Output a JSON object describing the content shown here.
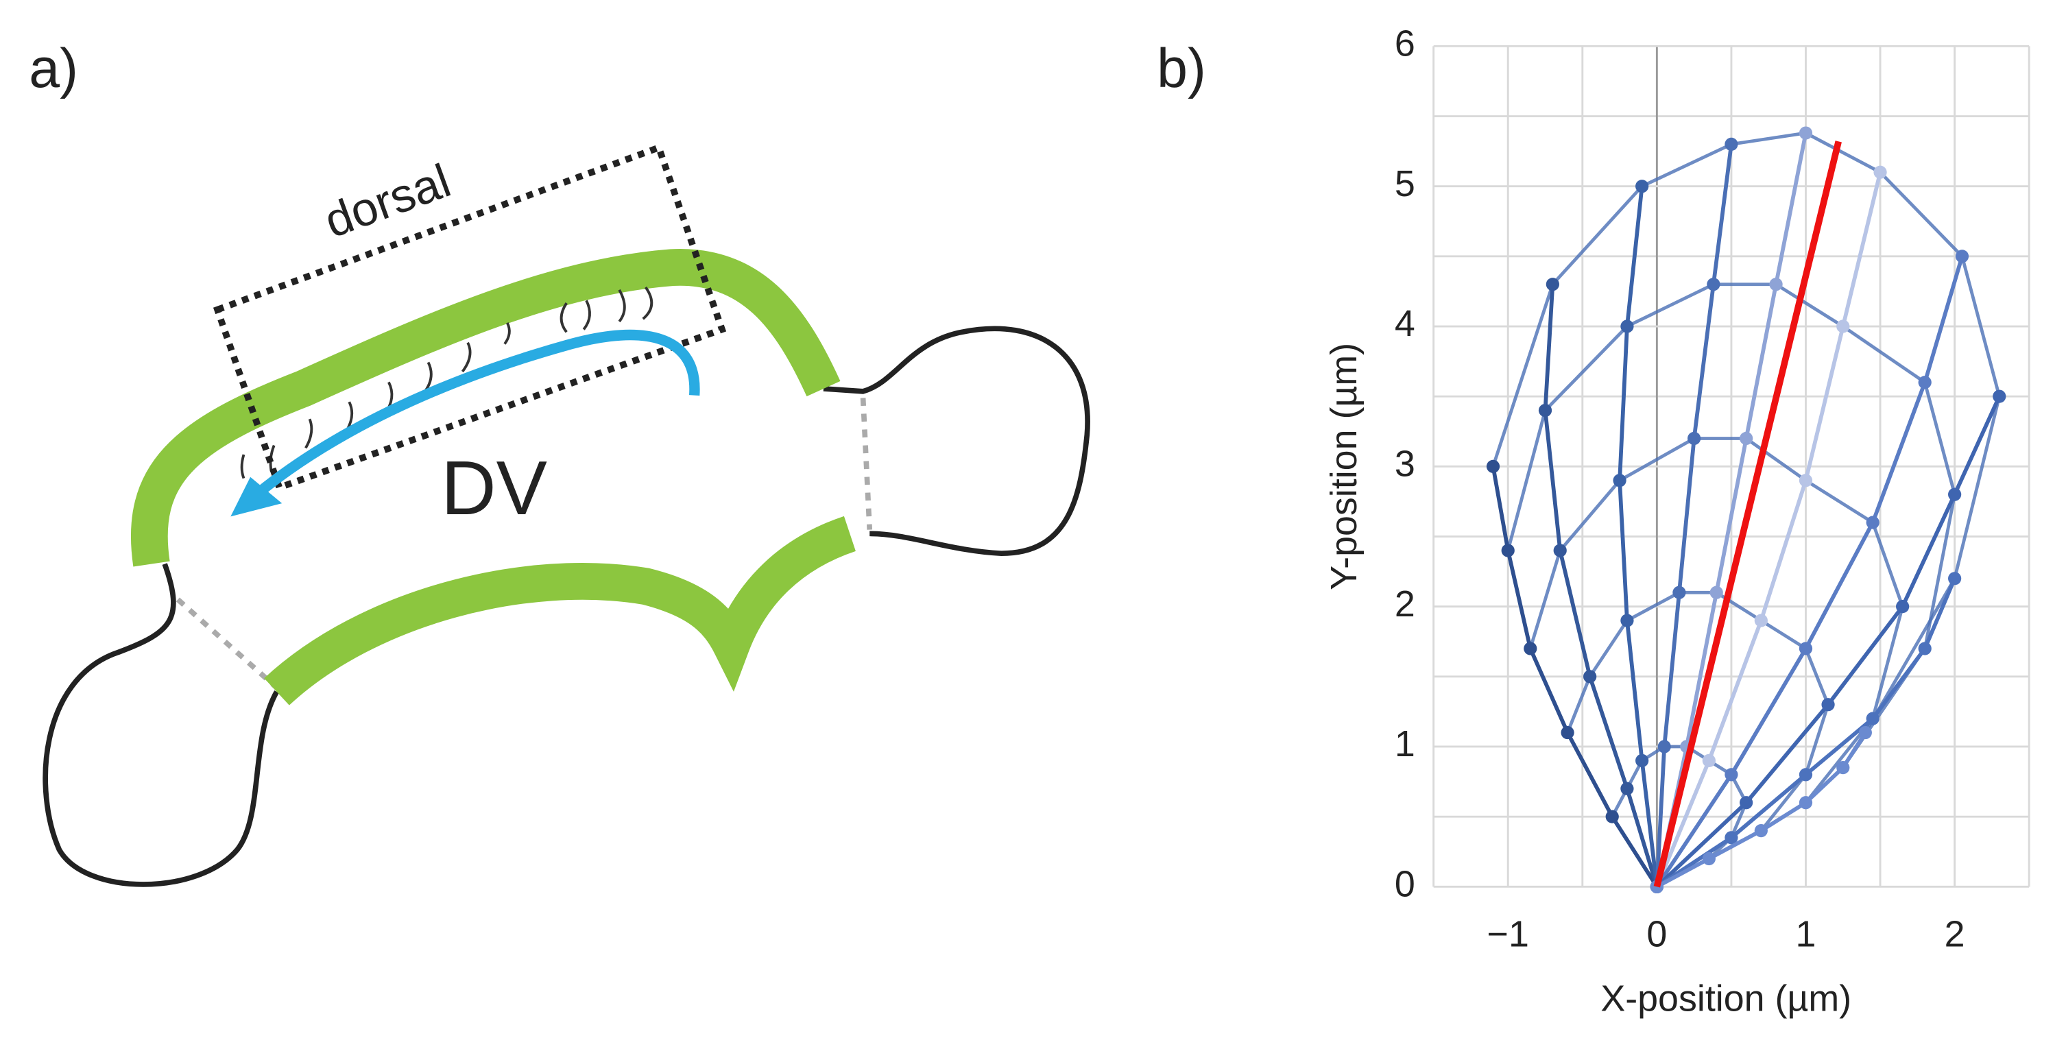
{
  "panel_a": {
    "label": "a)",
    "region": "dorsal",
    "axis": "DV"
  },
  "chart_data": {
    "type": "line",
    "label": "b)",
    "xlabel": "X-position (µm)",
    "ylabel": "Y-position (µm)",
    "xlim": [
      -1.5,
      2.5
    ],
    "ylim": [
      0,
      6
    ],
    "xticks": [
      {
        "value": -1,
        "label": "−1"
      },
      0,
      1,
      2
    ],
    "yticks": [
      0,
      1,
      2,
      3,
      4,
      5,
      6
    ],
    "xminor": [
      -1.5,
      -0.5,
      0.5,
      1.5,
      2.5
    ],
    "yminor": [
      0.5,
      1.5,
      2.5,
      3.5,
      4.5,
      5.5
    ],
    "grid": true,
    "series": [
      {
        "color": "#2e4f8f",
        "x": [
          0,
          -0.3,
          -0.6,
          -0.85,
          -1.0,
          -1.1
        ],
        "values": [
          0,
          0.5,
          1.1,
          1.7,
          2.4,
          3.0
        ]
      },
      {
        "color": "#34589a",
        "x": [
          0,
          -0.2,
          -0.45,
          -0.65,
          -0.75,
          -0.7
        ],
        "values": [
          0,
          0.7,
          1.5,
          2.4,
          3.4,
          4.3
        ]
      },
      {
        "color": "#3a62a8",
        "x": [
          0,
          -0.1,
          -0.2,
          -0.25,
          -0.2,
          -0.1
        ],
        "values": [
          0,
          0.9,
          1.9,
          2.9,
          4.0,
          5.0
        ]
      },
      {
        "color": "#4a6fb5",
        "x": [
          0,
          0.05,
          0.15,
          0.25,
          0.38,
          0.5
        ],
        "values": [
          0,
          1.0,
          2.1,
          3.2,
          4.3,
          5.3
        ]
      },
      {
        "color": "#8ea3d6",
        "x": [
          0,
          0.2,
          0.4,
          0.6,
          0.8,
          1.0
        ],
        "values": [
          0,
          1.0,
          2.1,
          3.2,
          4.3,
          5.38
        ]
      },
      {
        "color": "#b7c4e6",
        "x": [
          0,
          0.35,
          0.7,
          1.0,
          1.25,
          1.5
        ],
        "values": [
          0,
          0.9,
          1.9,
          2.9,
          4.0,
          5.1
        ]
      },
      {
        "color": "#5a7cc4",
        "x": [
          0,
          0.5,
          1.0,
          1.45,
          1.8,
          2.05
        ],
        "values": [
          0,
          0.8,
          1.7,
          2.6,
          3.6,
          4.5
        ]
      },
      {
        "color": "#3f65b0",
        "x": [
          0,
          0.6,
          1.15,
          1.65,
          2.0,
          2.3
        ],
        "values": [
          0,
          0.6,
          1.3,
          2.0,
          2.8,
          3.5
        ]
      },
      {
        "color": "#4c72bd",
        "x": [
          0,
          0.5,
          1.0,
          1.45,
          1.8,
          2.0
        ],
        "values": [
          0,
          0.35,
          0.8,
          1.2,
          1.7,
          2.2
        ]
      },
      {
        "color": "#6a8ad0",
        "x": [
          0,
          0.35,
          0.7,
          1.0,
          1.25,
          1.4
        ],
        "values": [
          0,
          0.2,
          0.4,
          0.6,
          0.85,
          1.1
        ]
      }
    ],
    "fit": {
      "color": "#ee1111",
      "x": [
        0,
        1.22
      ],
      "values": [
        0,
        5.32
      ]
    }
  }
}
